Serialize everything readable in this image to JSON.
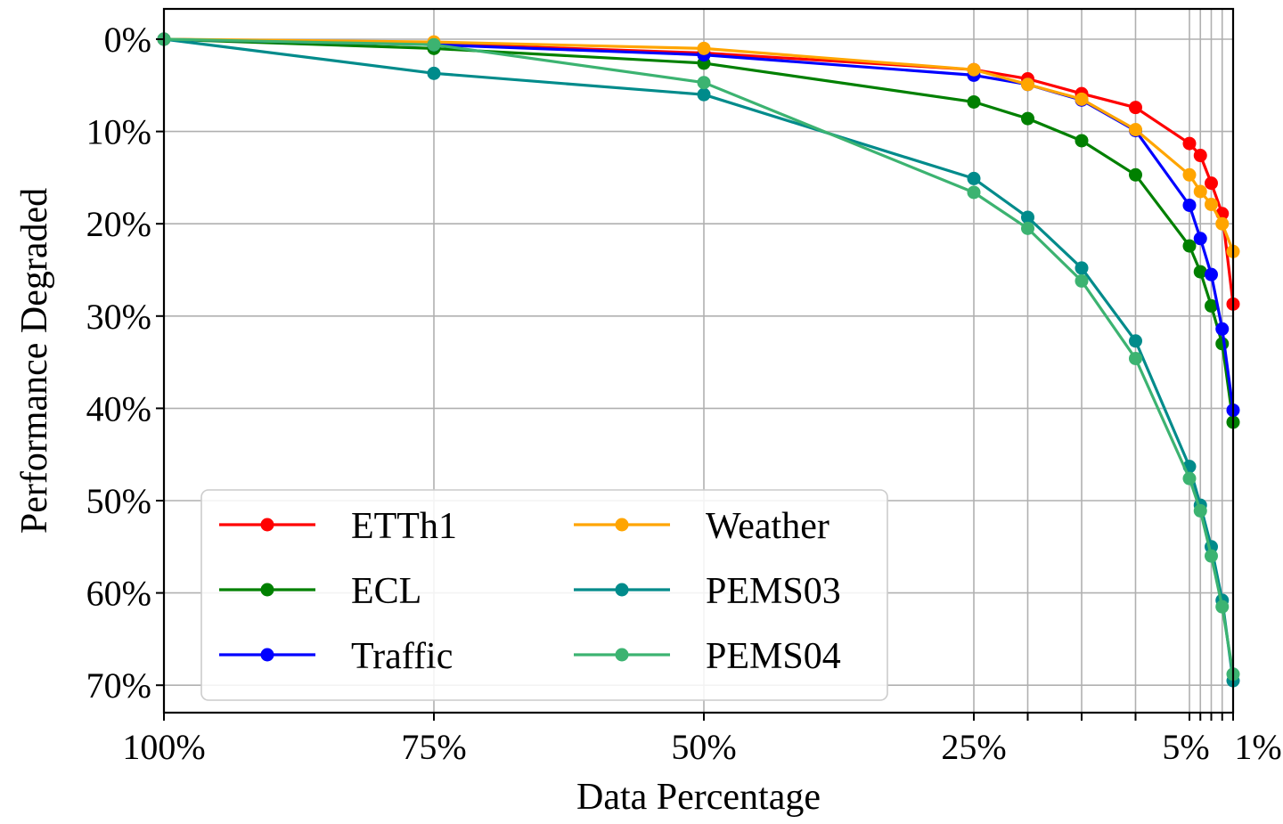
{
  "chart_data": {
    "type": "line",
    "title": "",
    "xlabel": "Data Percentage",
    "ylabel": "Performance Degraded",
    "x": [
      100,
      75,
      50,
      25,
      20,
      15,
      10,
      5,
      4,
      3,
      2,
      1
    ],
    "x_tick_values": [
      100,
      75,
      50,
      25,
      5,
      1
    ],
    "x_tick_labels": [
      "100%",
      "75%",
      "50%",
      "25%",
      "5%",
      "1%"
    ],
    "x_minor_values": [
      20,
      15,
      10,
      4,
      3,
      2
    ],
    "y_ticks": [
      0,
      10,
      20,
      30,
      40,
      50,
      60,
      70
    ],
    "y_tick_labels": [
      "0%",
      "10%",
      "20%",
      "30%",
      "40%",
      "50%",
      "60%",
      "70%"
    ],
    "ylim": [
      0,
      72.5
    ],
    "y_inverted": true,
    "grid": true,
    "legend_position": "lower-left",
    "series": [
      {
        "name": "ETTh1",
        "color": "#ff0000",
        "values": [
          0,
          0.5,
          1.5,
          3.3,
          4.3,
          5.9,
          7.4,
          11.3,
          12.6,
          15.6,
          18.9,
          28.7
        ]
      },
      {
        "name": "ECL",
        "color": "#008000",
        "values": [
          0,
          1.0,
          2.6,
          6.8,
          8.6,
          11.0,
          14.7,
          22.4,
          25.2,
          28.9,
          33.0,
          41.5
        ]
      },
      {
        "name": "Traffic",
        "color": "#0000ff",
        "values": [
          0,
          0.6,
          1.7,
          3.9,
          4.9,
          6.6,
          9.9,
          18.0,
          21.6,
          25.5,
          31.4,
          40.2
        ]
      },
      {
        "name": "Weather",
        "color": "#ffa500",
        "values": [
          0,
          0.3,
          1.0,
          3.3,
          4.9,
          6.5,
          9.8,
          14.7,
          16.5,
          17.9,
          20.0,
          23.0
        ]
      },
      {
        "name": "PEMS03",
        "color": "#008b8b",
        "values": [
          0,
          3.7,
          6.0,
          15.1,
          19.3,
          24.8,
          32.7,
          46.3,
          50.5,
          55.0,
          60.8,
          69.5
        ]
      },
      {
        "name": "PEMS04",
        "color": "#3cb371",
        "values": [
          0,
          0.6,
          4.7,
          16.6,
          20.5,
          26.2,
          34.6,
          47.6,
          51.1,
          56.0,
          61.5,
          68.8
        ]
      }
    ]
  }
}
